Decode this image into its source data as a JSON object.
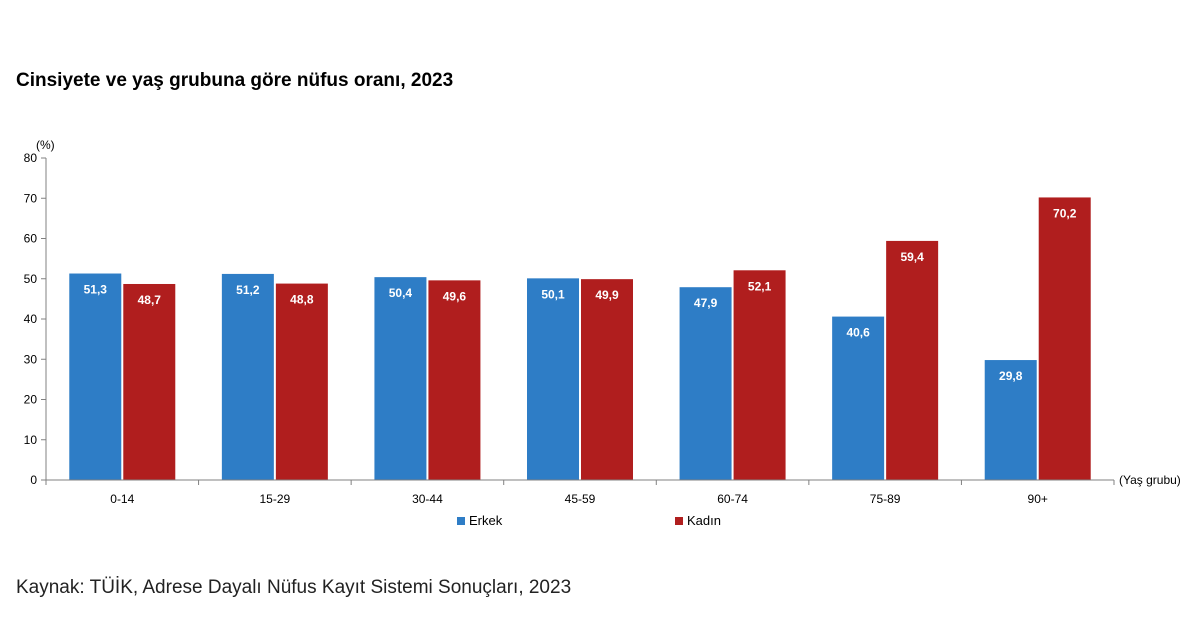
{
  "chart_data": {
    "type": "bar",
    "title": "Cinsiyete ve yaş grubuna göre nüfus oranı, 2023",
    "ylabel": "(%)",
    "xlabel": "(Yaş grubu)",
    "ylim": [
      0,
      80
    ],
    "yticks": [
      "0",
      "10",
      "20",
      "30",
      "40",
      "50",
      "60",
      "70",
      "80"
    ],
    "categories": [
      "0-14",
      "15-29",
      "30-44",
      "45-59",
      "60-74",
      "75-89",
      "90+"
    ],
    "series": [
      {
        "name": "Erkek",
        "color": "#2E7DC6",
        "values": [
          51.3,
          51.2,
          50.4,
          50.1,
          47.9,
          40.6,
          29.8
        ],
        "labels": [
          "51,3",
          "51,2",
          "50,4",
          "50,1",
          "47,9",
          "40,6",
          "29,8"
        ]
      },
      {
        "name": "Kadın",
        "color": "#B01E1E",
        "values": [
          48.7,
          48.8,
          49.6,
          49.9,
          52.1,
          59.4,
          70.2
        ],
        "labels": [
          "48,7",
          "48,8",
          "49,6",
          "49,9",
          "52,1",
          "59,4",
          "70,2"
        ]
      }
    ],
    "grid": false,
    "legend": "bottom"
  },
  "source": "Kaynak: TÜİK, Adrese Dayalı Nüfus Kayıt Sistemi Sonuçları, 2023"
}
